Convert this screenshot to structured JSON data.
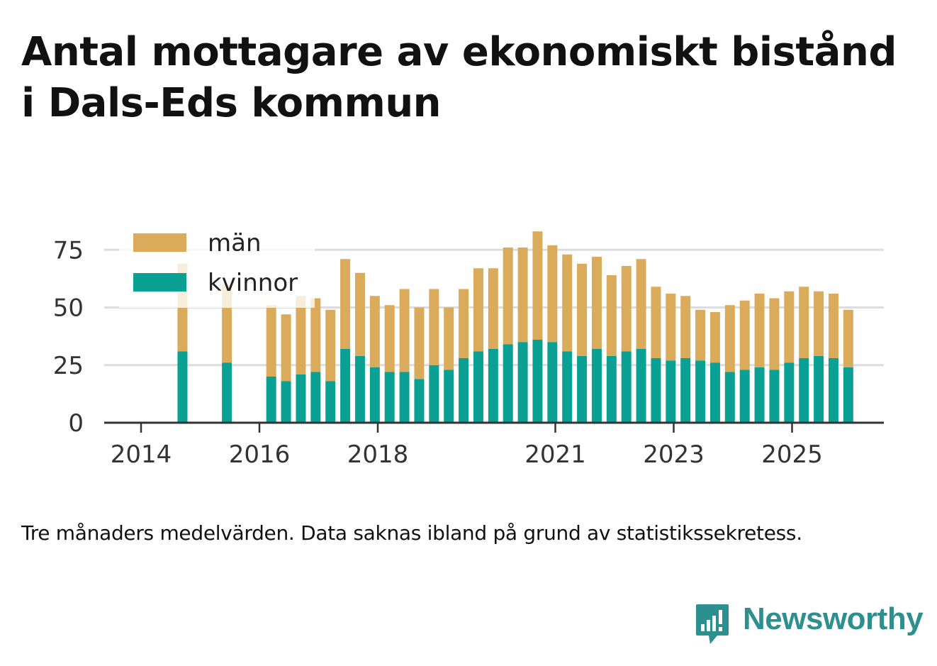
{
  "title": "Antal mottagare av ekonomiskt bistånd i Dals-Eds kommun",
  "note": "Tre månaders medelvärden. Data saknas ibland på grund av statistikssekretess.",
  "brand": {
    "name": "Newsworthy",
    "icon": "newsworthy-logo-icon",
    "color": "#2e8f8f"
  },
  "chart_data": {
    "type": "bar",
    "stacked": true,
    "x_ticks": [
      "2014",
      "2016",
      "2018",
      "2021",
      "2023",
      "2025"
    ],
    "y_ticks": [
      0,
      25,
      50,
      75
    ],
    "ylim": [
      0,
      85
    ],
    "grid": "horizontal",
    "legend_position": "top-left",
    "colors": {
      "män": "#d9ab5b",
      "kvinnor": "#0aa194",
      "grid": "#dddddd",
      "axis": "#333333"
    },
    "categories": [
      "2014 Q3",
      "2015 Q2",
      "2016 Q1",
      "2016 Q2",
      "2016 Q3",
      "2016 Q4",
      "2017 Q1",
      "2017 Q2",
      "2017 Q3",
      "2017 Q4",
      "2018 Q1",
      "2018 Q2",
      "2018 Q3",
      "2018 Q4",
      "2019 Q1",
      "2019 Q2",
      "2019 Q3",
      "2019 Q4",
      "2020 Q1",
      "2020 Q2",
      "2020 Q3",
      "2020 Q4",
      "2021 Q1",
      "2021 Q2",
      "2021 Q3",
      "2021 Q4",
      "2022 Q1",
      "2022 Q2",
      "2022 Q3",
      "2022 Q4",
      "2023 Q1",
      "2023 Q2",
      "2023 Q3",
      "2023 Q4",
      "2024 Q1",
      "2024 Q2",
      "2024 Q3",
      "2024 Q4",
      "2025 Q1",
      "2025 Q2",
      "2025 Q3",
      "2025 Q4"
    ],
    "series": [
      {
        "name": "kvinnor",
        "values": [
          31,
          26,
          20,
          18,
          21,
          22,
          18,
          32,
          29,
          24,
          22,
          22,
          19,
          25,
          23,
          28,
          31,
          32,
          34,
          35,
          36,
          35,
          31,
          29,
          32,
          29,
          31,
          32,
          28,
          27,
          28,
          27,
          26,
          22,
          23,
          24,
          23,
          26,
          28,
          29,
          28,
          24
        ]
      },
      {
        "name": "män",
        "values": [
          38,
          34,
          31,
          29,
          34,
          32,
          31,
          39,
          36,
          31,
          29,
          36,
          31,
          33,
          27,
          30,
          36,
          35,
          42,
          41,
          47,
          42,
          42,
          40,
          40,
          35,
          37,
          39,
          31,
          29,
          27,
          22,
          22,
          29,
          30,
          32,
          31,
          31,
          31,
          28,
          28,
          25
        ]
      }
    ]
  }
}
